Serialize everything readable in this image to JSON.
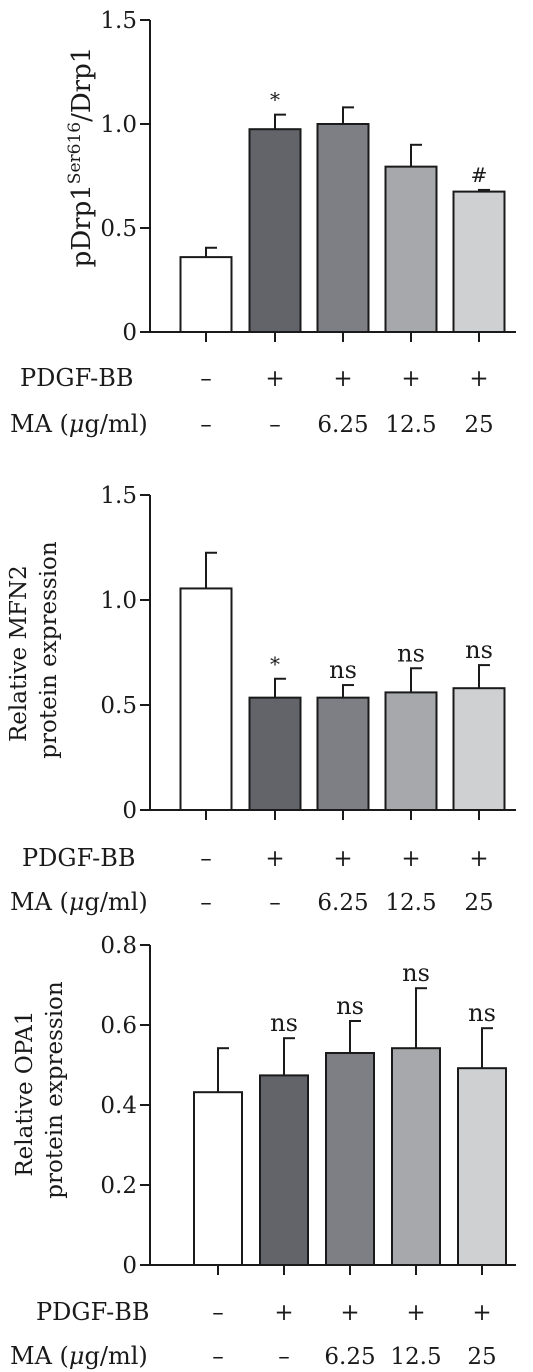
{
  "chart_data": [
    {
      "type": "bar",
      "ylabel_main": "pDrp1",
      "ylabel_sup": "Ser616",
      "ylabel_tail": "/Drp1",
      "ylim": [
        0,
        1.5
      ],
      "yticks": [
        "0",
        "0.5",
        "1.0",
        "1.5"
      ],
      "ytick_values": [
        0,
        0.5,
        1.0,
        1.5
      ],
      "values": [
        0.36,
        0.975,
        1.0,
        0.795,
        0.675
      ],
      "errors": [
        0.045,
        0.07,
        0.08,
        0.105,
        0.008
      ],
      "colors": [
        "#ffffff",
        "#636469",
        "#7e7f84",
        "#a7a8ac",
        "#cfd0d2"
      ],
      "annotations": [
        "",
        "*",
        "",
        "",
        "#"
      ],
      "conditions": [
        {
          "label": "PDGF-BB",
          "values": [
            "–",
            "+",
            "+",
            "+",
            "+"
          ]
        },
        {
          "label_pre": "MA (",
          "label_mu": "μ",
          "label_post": "g/ml)",
          "values": [
            "–",
            "–",
            "6.25",
            "12.5",
            "25"
          ]
        }
      ]
    },
    {
      "type": "bar",
      "ylabel_lines": [
        "Relative MFN2",
        "protein expression"
      ],
      "ylim": [
        0,
        1.5
      ],
      "yticks": [
        "0",
        "0.5",
        "1.0",
        "1.5"
      ],
      "ytick_values": [
        0,
        0.5,
        1.0,
        1.5
      ],
      "values": [
        1.055,
        0.535,
        0.535,
        0.56,
        0.58
      ],
      "errors": [
        0.17,
        0.09,
        0.06,
        0.115,
        0.11
      ],
      "colors": [
        "#ffffff",
        "#636469",
        "#7e7f84",
        "#a7a8ac",
        "#cfd0d2"
      ],
      "annotations": [
        "",
        "*",
        "ns",
        "ns",
        "ns"
      ],
      "conditions": [
        {
          "label": "PDGF-BB",
          "values": [
            "–",
            "+",
            "+",
            "+",
            "+"
          ]
        },
        {
          "label_pre": "MA (",
          "label_mu": "μ",
          "label_post": "g/ml)",
          "values": [
            "–",
            "–",
            "6.25",
            "12.5",
            "25"
          ]
        }
      ]
    },
    {
      "type": "bar",
      "ylabel_lines": [
        "Relative OPA1",
        "protein expression"
      ],
      "ylim": [
        0,
        0.8
      ],
      "yticks": [
        "0",
        "0.2",
        "0.4",
        "0.6",
        "0.8"
      ],
      "ytick_values": [
        0,
        0.2,
        0.4,
        0.6,
        0.8
      ],
      "values": [
        0.432,
        0.474,
        0.53,
        0.542,
        0.492
      ],
      "errors": [
        0.11,
        0.093,
        0.08,
        0.15,
        0.1
      ],
      "colors": [
        "#ffffff",
        "#636469",
        "#7e7f84",
        "#a7a8ac",
        "#cfd0d2"
      ],
      "annotations": [
        "",
        "ns",
        "ns",
        "ns",
        "ns"
      ],
      "conditions": [
        {
          "label": "PDGF-BB",
          "values": [
            "–",
            "+",
            "+",
            "+",
            "+"
          ]
        },
        {
          "label_pre": "MA (",
          "label_mu": "μ",
          "label_post": "g/ml)",
          "values": [
            "–",
            "–",
            "6.25",
            "12.5",
            "25"
          ]
        }
      ]
    }
  ]
}
